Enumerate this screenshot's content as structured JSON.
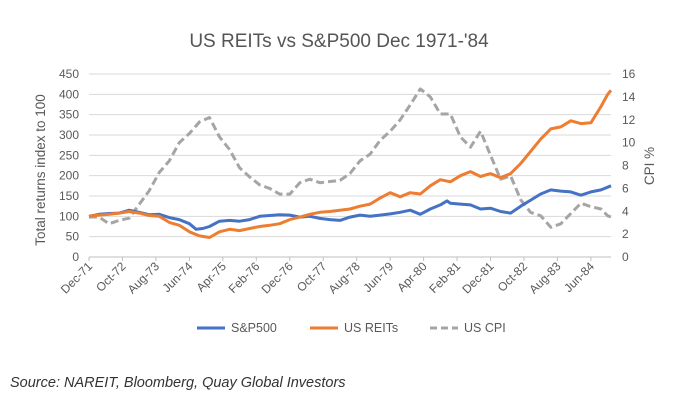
{
  "chart_data": {
    "type": "line",
    "title": "US REITs vs S&P500 Dec 1971-'84",
    "ylabel": "Total returns index to 100",
    "ylabel_right": "CPI %",
    "ylim": [
      0,
      450
    ],
    "yticks": [
      0,
      50,
      100,
      150,
      200,
      250,
      300,
      350,
      400,
      450
    ],
    "ylim_right": [
      0,
      16
    ],
    "yticks_right": [
      0,
      2,
      4,
      6,
      8,
      10,
      12,
      14,
      16
    ],
    "x_tick_labels": [
      "Dec-71",
      "Oct-72",
      "Aug-73",
      "Jun-74",
      "Apr-75",
      "Feb-76",
      "Dec-76",
      "Oct-77",
      "Aug-78",
      "Jun-79",
      "Apr-80",
      "Feb-81",
      "Dec-81",
      "Oct-82",
      "Aug-83",
      "Jun-84"
    ],
    "x_start": "Dec-71",
    "x_end": "Dec-84",
    "legend_position": "bottom",
    "grid": "horizontal",
    "series": [
      {
        "name": "S&P500",
        "axis": "left",
        "color": "#4472C4",
        "dash": "solid",
        "points": [
          [
            "Dec-71",
            100
          ],
          [
            "Mar-72",
            105
          ],
          [
            "Jun-72",
            107
          ],
          [
            "Sep-72",
            108
          ],
          [
            "Dec-72",
            115
          ],
          [
            "Mar-73",
            110
          ],
          [
            "Jun-73",
            104
          ],
          [
            "Sep-73",
            105
          ],
          [
            "Dec-73",
            97
          ],
          [
            "Mar-74",
            92
          ],
          [
            "Jun-74",
            82
          ],
          [
            "Aug-74",
            68
          ],
          [
            "Oct-74",
            70
          ],
          [
            "Dec-74",
            75
          ],
          [
            "Mar-75",
            88
          ],
          [
            "Jun-75",
            90
          ],
          [
            "Sep-75",
            88
          ],
          [
            "Dec-75",
            92
          ],
          [
            "Mar-76",
            100
          ],
          [
            "Jun-76",
            102
          ],
          [
            "Sep-76",
            104
          ],
          [
            "Dec-76",
            103
          ],
          [
            "Mar-77",
            98
          ],
          [
            "Jun-77",
            100
          ],
          [
            "Sep-77",
            95
          ],
          [
            "Dec-77",
            92
          ],
          [
            "Mar-78",
            90
          ],
          [
            "Jun-78",
            98
          ],
          [
            "Sep-78",
            103
          ],
          [
            "Dec-78",
            100
          ],
          [
            "Mar-79",
            103
          ],
          [
            "Jun-79",
            106
          ],
          [
            "Sep-79",
            110
          ],
          [
            "Dec-79",
            115
          ],
          [
            "Mar-80",
            105
          ],
          [
            "Jun-80",
            118
          ],
          [
            "Sep-80",
            128
          ],
          [
            "Nov-80",
            138
          ],
          [
            "Dec-80",
            132
          ],
          [
            "Mar-81",
            130
          ],
          [
            "Jun-81",
            128
          ],
          [
            "Sep-81",
            118
          ],
          [
            "Dec-81",
            120
          ],
          [
            "Mar-82",
            112
          ],
          [
            "Jun-82",
            108
          ],
          [
            "Sep-82",
            125
          ],
          [
            "Dec-82",
            140
          ],
          [
            "Mar-83",
            155
          ],
          [
            "Jun-83",
            165
          ],
          [
            "Sep-83",
            162
          ],
          [
            "Dec-83",
            160
          ],
          [
            "Mar-84",
            152
          ],
          [
            "Jun-84",
            160
          ],
          [
            "Sep-84",
            165
          ],
          [
            "Dec-84",
            175
          ]
        ]
      },
      {
        "name": "US REITs",
        "axis": "left",
        "color": "#ED7D31",
        "dash": "solid",
        "points": [
          [
            "Dec-71",
            100
          ],
          [
            "Mar-72",
            103
          ],
          [
            "Jun-72",
            105
          ],
          [
            "Sep-72",
            108
          ],
          [
            "Dec-72",
            112
          ],
          [
            "Mar-73",
            108
          ],
          [
            "Jun-73",
            102
          ],
          [
            "Sep-73",
            100
          ],
          [
            "Dec-73",
            85
          ],
          [
            "Mar-74",
            78
          ],
          [
            "Jun-74",
            62
          ],
          [
            "Sep-74",
            52
          ],
          [
            "Dec-74",
            48
          ],
          [
            "Mar-75",
            62
          ],
          [
            "Jun-75",
            68
          ],
          [
            "Sep-75",
            65
          ],
          [
            "Dec-75",
            70
          ],
          [
            "Mar-76",
            75
          ],
          [
            "Jun-76",
            78
          ],
          [
            "Sep-76",
            82
          ],
          [
            "Dec-76",
            92
          ],
          [
            "Mar-77",
            98
          ],
          [
            "Jun-77",
            105
          ],
          [
            "Sep-77",
            110
          ],
          [
            "Dec-77",
            112
          ],
          [
            "Mar-78",
            115
          ],
          [
            "Jun-78",
            118
          ],
          [
            "Sep-78",
            125
          ],
          [
            "Dec-78",
            130
          ],
          [
            "Mar-79",
            145
          ],
          [
            "Jun-79",
            158
          ],
          [
            "Sep-79",
            148
          ],
          [
            "Dec-79",
            158
          ],
          [
            "Mar-80",
            155
          ],
          [
            "Jun-80",
            175
          ],
          [
            "Sep-80",
            190
          ],
          [
            "Dec-80",
            185
          ],
          [
            "Mar-81",
            200
          ],
          [
            "Jun-81",
            210
          ],
          [
            "Sep-81",
            198
          ],
          [
            "Dec-81",
            205
          ],
          [
            "Mar-82",
            195
          ],
          [
            "Jun-82",
            205
          ],
          [
            "Sep-82",
            230
          ],
          [
            "Dec-82",
            260
          ],
          [
            "Mar-83",
            290
          ],
          [
            "Jun-83",
            315
          ],
          [
            "Sep-83",
            320
          ],
          [
            "Dec-83",
            335
          ],
          [
            "Mar-84",
            328
          ],
          [
            "Jun-84",
            330
          ],
          [
            "Sep-84",
            370
          ],
          [
            "Nov-84",
            400
          ],
          [
            "Dec-84",
            410
          ]
        ]
      },
      {
        "name": "US CPI",
        "axis": "right",
        "color": "#A5A5A5",
        "dash": "dashed",
        "points": [
          [
            "Dec-71",
            3.5
          ],
          [
            "Mar-72",
            3.5
          ],
          [
            "Jun-72",
            2.9
          ],
          [
            "Sep-72",
            3.2
          ],
          [
            "Dec-72",
            3.4
          ],
          [
            "Mar-73",
            4.6
          ],
          [
            "Jun-73",
            5.8
          ],
          [
            "Sep-73",
            7.4
          ],
          [
            "Dec-73",
            8.4
          ],
          [
            "Mar-74",
            10.0
          ],
          [
            "Jun-74",
            10.8
          ],
          [
            "Sep-74",
            11.8
          ],
          [
            "Dec-74",
            12.2
          ],
          [
            "Mar-75",
            10.5
          ],
          [
            "Jun-75",
            9.4
          ],
          [
            "Sep-75",
            7.8
          ],
          [
            "Dec-75",
            7.0
          ],
          [
            "Mar-76",
            6.3
          ],
          [
            "Jun-76",
            6.0
          ],
          [
            "Sep-76",
            5.5
          ],
          [
            "Dec-76",
            5.5
          ],
          [
            "Mar-77",
            6.5
          ],
          [
            "Jun-77",
            6.8
          ],
          [
            "Sep-77",
            6.5
          ],
          [
            "Dec-77",
            6.6
          ],
          [
            "Mar-78",
            6.7
          ],
          [
            "Jun-78",
            7.3
          ],
          [
            "Sep-78",
            8.4
          ],
          [
            "Dec-78",
            9.0
          ],
          [
            "Mar-79",
            10.2
          ],
          [
            "Jun-79",
            11.0
          ],
          [
            "Sep-79",
            12.0
          ],
          [
            "Dec-79",
            13.3
          ],
          [
            "Mar-80",
            14.7
          ],
          [
            "Jun-80",
            14.0
          ],
          [
            "Sep-80",
            12.5
          ],
          [
            "Dec-80",
            12.5
          ],
          [
            "Mar-81",
            10.5
          ],
          [
            "Jun-81",
            9.6
          ],
          [
            "Sep-81",
            11.0
          ],
          [
            "Dec-81",
            8.9
          ],
          [
            "Mar-82",
            6.8
          ],
          [
            "Jun-82",
            7.1
          ],
          [
            "Sep-82",
            5.0
          ],
          [
            "Dec-82",
            3.9
          ],
          [
            "Mar-83",
            3.6
          ],
          [
            "Jun-83",
            2.6
          ],
          [
            "Sep-83",
            2.9
          ],
          [
            "Dec-83",
            3.8
          ],
          [
            "Mar-84",
            4.7
          ],
          [
            "Jun-84",
            4.4
          ],
          [
            "Sep-84",
            4.2
          ],
          [
            "Nov-84",
            3.6
          ],
          [
            "Dec-84",
            3.5
          ]
        ]
      }
    ]
  },
  "source_note": "Source: NAREIT, Bloomberg, Quay Global Investors"
}
